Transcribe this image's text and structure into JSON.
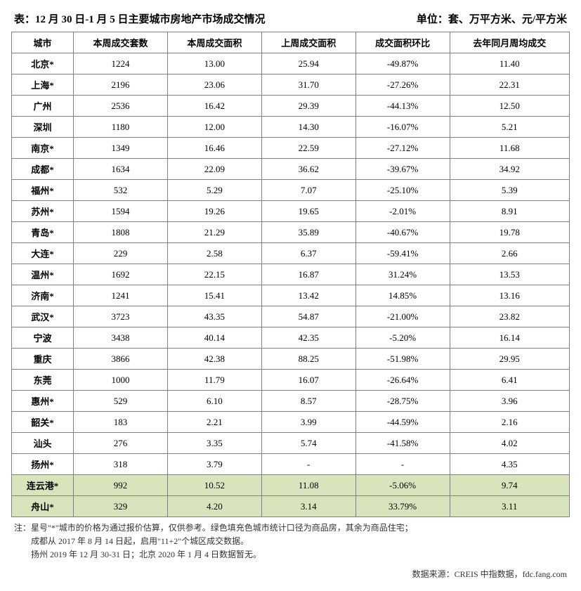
{
  "title": "表：12 月 30 日-1 月 5 日主要城市房地产市场成交情况",
  "unit": "单位：套、万平方米、元/平方米",
  "table": {
    "columns": [
      "城市",
      "本周成交套数",
      "本周成交面积",
      "上周成交面积",
      "成交面积环比",
      "去年同月周均成交"
    ],
    "col_align": [
      "center",
      "center",
      "center",
      "center",
      "center",
      "center"
    ],
    "highlight_color": "#d8e4bc",
    "border_color": "#808080",
    "header_fontsize": 13,
    "body_fontsize": 13,
    "rows": [
      {
        "city": "北京*",
        "sets": "1224",
        "area_this": "13.00",
        "area_last": "25.94",
        "mom": "-49.87%",
        "lastyear": "11.40",
        "highlight": false
      },
      {
        "city": "上海*",
        "sets": "2196",
        "area_this": "23.06",
        "area_last": "31.70",
        "mom": "-27.26%",
        "lastyear": "22.31",
        "highlight": false
      },
      {
        "city": "广州",
        "sets": "2536",
        "area_this": "16.42",
        "area_last": "29.39",
        "mom": "-44.13%",
        "lastyear": "12.50",
        "highlight": false
      },
      {
        "city": "深圳",
        "sets": "1180",
        "area_this": "12.00",
        "area_last": "14.30",
        "mom": "-16.07%",
        "lastyear": "5.21",
        "highlight": false
      },
      {
        "city": "南京*",
        "sets": "1349",
        "area_this": "16.46",
        "area_last": "22.59",
        "mom": "-27.12%",
        "lastyear": "11.68",
        "highlight": false
      },
      {
        "city": "成都*",
        "sets": "1634",
        "area_this": "22.09",
        "area_last": "36.62",
        "mom": "-39.67%",
        "lastyear": "34.92",
        "highlight": false
      },
      {
        "city": "福州*",
        "sets": "532",
        "area_this": "5.29",
        "area_last": "7.07",
        "mom": "-25.10%",
        "lastyear": "5.39",
        "highlight": false
      },
      {
        "city": "苏州*",
        "sets": "1594",
        "area_this": "19.26",
        "area_last": "19.65",
        "mom": "-2.01%",
        "lastyear": "8.91",
        "highlight": false
      },
      {
        "city": "青岛*",
        "sets": "1808",
        "area_this": "21.29",
        "area_last": "35.89",
        "mom": "-40.67%",
        "lastyear": "19.78",
        "highlight": false
      },
      {
        "city": "大连*",
        "sets": "229",
        "area_this": "2.58",
        "area_last": "6.37",
        "mom": "-59.41%",
        "lastyear": "2.66",
        "highlight": false
      },
      {
        "city": "温州*",
        "sets": "1692",
        "area_this": "22.15",
        "area_last": "16.87",
        "mom": "31.24%",
        "lastyear": "13.53",
        "highlight": false
      },
      {
        "city": "济南*",
        "sets": "1241",
        "area_this": "15.41",
        "area_last": "13.42",
        "mom": "14.85%",
        "lastyear": "13.16",
        "highlight": false
      },
      {
        "city": "武汉*",
        "sets": "3723",
        "area_this": "43.35",
        "area_last": "54.87",
        "mom": "-21.00%",
        "lastyear": "23.82",
        "highlight": false
      },
      {
        "city": "宁波",
        "sets": "3438",
        "area_this": "40.14",
        "area_last": "42.35",
        "mom": "-5.20%",
        "lastyear": "16.14",
        "highlight": false
      },
      {
        "city": "重庆",
        "sets": "3866",
        "area_this": "42.38",
        "area_last": "88.25",
        "mom": "-51.98%",
        "lastyear": "29.95",
        "highlight": false
      },
      {
        "city": "东莞",
        "sets": "1000",
        "area_this": "11.79",
        "area_last": "16.07",
        "mom": "-26.64%",
        "lastyear": "6.41",
        "highlight": false
      },
      {
        "city": "惠州*",
        "sets": "529",
        "area_this": "6.10",
        "area_last": "8.57",
        "mom": "-28.75%",
        "lastyear": "3.96",
        "highlight": false
      },
      {
        "city": "韶关*",
        "sets": "183",
        "area_this": "2.21",
        "area_last": "3.99",
        "mom": "-44.59%",
        "lastyear": "2.16",
        "highlight": false
      },
      {
        "city": "汕头",
        "sets": "276",
        "area_this": "3.35",
        "area_last": "5.74",
        "mom": "-41.58%",
        "lastyear": "4.02",
        "highlight": false
      },
      {
        "city": "扬州*",
        "sets": "318",
        "area_this": "3.79",
        "area_last": "-",
        "mom": "-",
        "lastyear": "4.35",
        "highlight": false
      },
      {
        "city": "连云港*",
        "sets": "992",
        "area_this": "10.52",
        "area_last": "11.08",
        "mom": "-5.06%",
        "lastyear": "9.74",
        "highlight": true
      },
      {
        "city": "舟山*",
        "sets": "329",
        "area_this": "4.20",
        "area_last": "3.14",
        "mom": "33.79%",
        "lastyear": "3.11",
        "highlight": true
      }
    ]
  },
  "notes": [
    "注：星号\"*\"城市的价格为通过报价估算，仅供参考。绿色填充色城市统计口径为商品房，其余为商品住宅；",
    "成都从 2017 年 8 月 14 日起，启用\"11+2\"个城区成交数据。",
    "扬州 2019 年 12 月 30-31 日；北京 2020 年 1 月 4 日数据暂无。"
  ],
  "source": "数据来源：CREIS 中指数据，fdc.fang.com"
}
